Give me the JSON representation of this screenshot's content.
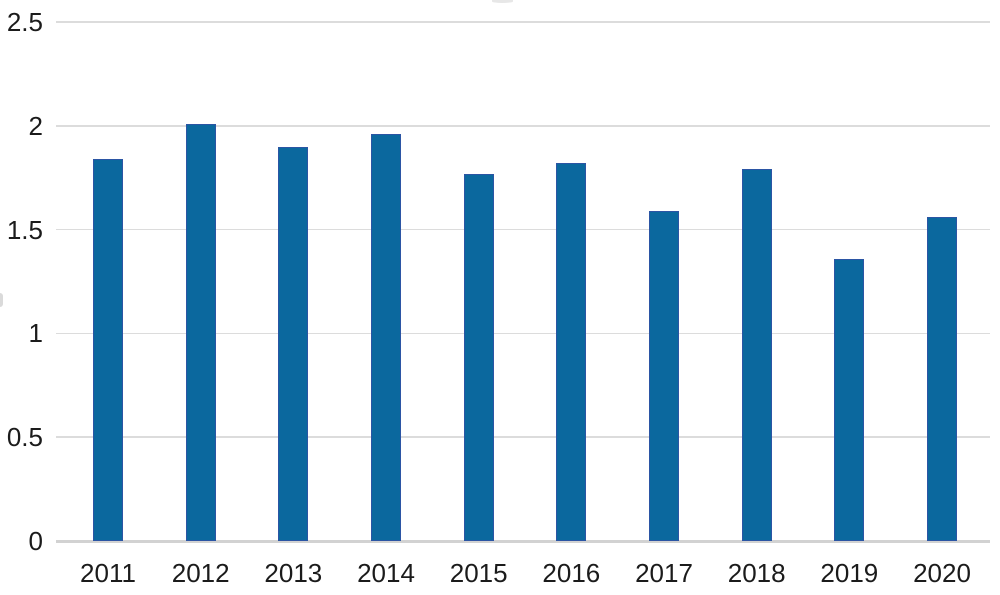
{
  "chart_data": {
    "type": "bar",
    "title": "",
    "xlabel": "",
    "ylabel": "",
    "categories": [
      "2011",
      "2012",
      "2013",
      "2014",
      "2015",
      "2016",
      "2017",
      "2018",
      "2019",
      "2020"
    ],
    "values": [
      1.84,
      2.01,
      1.9,
      1.96,
      1.77,
      1.82,
      1.59,
      1.79,
      1.36,
      1.56
    ],
    "ylim": [
      0,
      2.5
    ],
    "yticks": [
      0,
      0.5,
      1,
      1.5,
      2,
      2.5
    ],
    "ytick_labels": [
      "0",
      "0.5",
      "1",
      "1.5",
      "2",
      "2.5"
    ],
    "grid": "horizontal",
    "legend": "none",
    "bar_fill": "#0b689e",
    "bar_border": "#2b55a4",
    "gridline_color": "#dcdcdc",
    "axis_line_color": "#d2d2d2",
    "text_color": "#1b1b1b",
    "background": "#ffffff"
  }
}
